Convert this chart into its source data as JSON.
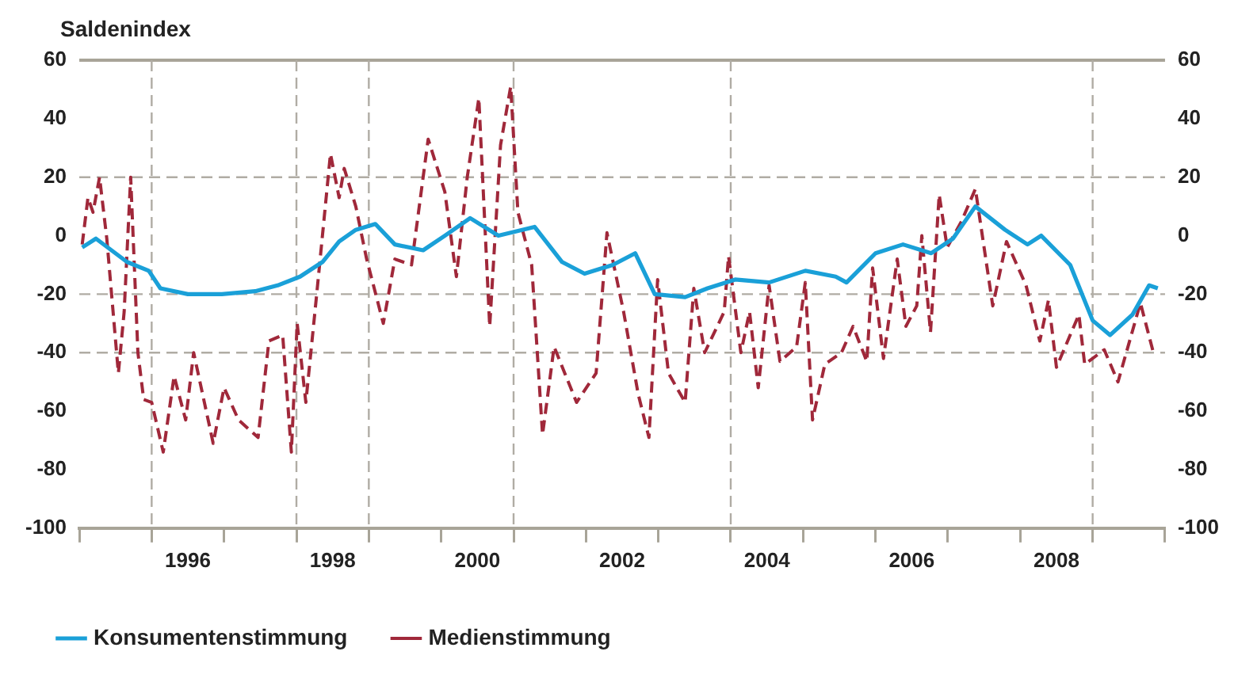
{
  "chart_data": {
    "type": "line",
    "ylabel": "Saldenindex",
    "xlim": [
      1995,
      2010
    ],
    "xticks": [
      {
        "value": 1995,
        "label": null
      },
      {
        "value": 1996,
        "label": null
      },
      {
        "value": 1996.5,
        "label": "1996"
      },
      {
        "value": 1997,
        "label": null
      },
      {
        "value": 1998,
        "label": null
      },
      {
        "value": 1998.5,
        "label": "1998"
      },
      {
        "value": 1999,
        "label": null
      },
      {
        "value": 2000,
        "label": null
      },
      {
        "value": 2000.5,
        "label": "2000"
      },
      {
        "value": 2001,
        "label": null
      },
      {
        "value": 2002,
        "label": null
      },
      {
        "value": 2002.5,
        "label": "2002"
      },
      {
        "value": 2003,
        "label": null
      },
      {
        "value": 2004,
        "label": null
      },
      {
        "value": 2004.5,
        "label": "2004"
      },
      {
        "value": 2005,
        "label": null
      },
      {
        "value": 2006,
        "label": null
      },
      {
        "value": 2006.5,
        "label": "2006"
      },
      {
        "value": 2007,
        "label": null
      },
      {
        "value": 2008,
        "label": null
      },
      {
        "value": 2008.5,
        "label": "2008"
      },
      {
        "value": 2009,
        "label": null
      },
      {
        "value": 2010,
        "label": null
      }
    ],
    "ylim": [
      -100,
      60
    ],
    "yticks": [
      -100,
      -80,
      -60,
      -40,
      -20,
      0,
      20,
      40,
      60
    ],
    "y2lim": [
      -100,
      60
    ],
    "y2ticks": [
      -100,
      -80,
      -60,
      -40,
      -20,
      0,
      20,
      40,
      60
    ],
    "legend": "bottom",
    "grid": false,
    "ref_lines": [
      {
        "axis": "x",
        "value": 1996,
        "color": "#b0aca4",
        "line_style": "dashed"
      },
      {
        "axis": "x",
        "value": 1998,
        "color": "#b0aca4",
        "line_style": "dashed"
      },
      {
        "axis": "x",
        "value": 1999,
        "color": "#b0aca4",
        "line_style": "dashed"
      },
      {
        "axis": "x",
        "value": 2001,
        "color": "#b0aca4",
        "line_style": "dashed"
      },
      {
        "axis": "x",
        "value": 2004,
        "color": "#b0aca4",
        "line_style": "dashed"
      },
      {
        "axis": "x",
        "value": 2009,
        "color": "#b0aca4",
        "line_style": "dashed"
      },
      {
        "axis": "y",
        "value": 20,
        "color": "#b0aca4",
        "line_style": "dashed"
      },
      {
        "axis": "y",
        "value": -20,
        "color": "#b0aca4",
        "line_style": "dashed"
      },
      {
        "axis": "y",
        "value": -40,
        "color": "#b0aca4",
        "line_style": "dashed"
      }
    ],
    "series": [
      {
        "name": "Konsumentenstimmung",
        "color": "#1aa0d8",
        "line_style": "solid",
        "x": [
          1995.04,
          1995.23,
          1995.66,
          1995.96,
          1996.12,
          1996.5,
          1996.97,
          1997.43,
          1997.74,
          1998.05,
          1998.36,
          1998.59,
          1998.82,
          1999.09,
          1999.36,
          1999.75,
          2000.05,
          2000.4,
          2000.79,
          2001.29,
          2001.67,
          2001.98,
          2002.37,
          2002.68,
          2002.95,
          2003.37,
          2003.68,
          2004.06,
          2004.53,
          2005.03,
          2005.45,
          2005.6,
          2006.0,
          2006.38,
          2006.77,
          2007.07,
          2007.38,
          2007.79,
          2008.1,
          2008.29,
          2008.69,
          2009.0,
          2009.24,
          2009.55,
          2009.78,
          2009.9
        ],
        "values": [
          -4,
          -1,
          -9,
          -12,
          -18,
          -20,
          -20,
          -19,
          -17,
          -14,
          -9,
          -2,
          2,
          4,
          -3,
          -5,
          0,
          6,
          0,
          3,
          -9,
          -13,
          -10,
          -6,
          -20,
          -21,
          -18,
          -15,
          -16,
          -12,
          -14,
          -16,
          -6,
          -3,
          -6,
          -1,
          10,
          2,
          -3,
          0,
          -10,
          -29,
          -34,
          -27,
          -17,
          -18
        ]
      },
      {
        "name": "Medienstimmung",
        "color": "#a0283a",
        "line_style": "dashed",
        "x": [
          1995.04,
          1995.12,
          1995.19,
          1995.28,
          1995.38,
          1995.54,
          1995.62,
          1995.71,
          1995.81,
          1995.89,
          1996.0,
          1996.16,
          1996.31,
          1996.47,
          1996.58,
          1996.85,
          1997.0,
          1997.2,
          1997.47,
          1997.62,
          1997.81,
          1997.93,
          1998.01,
          1998.13,
          1998.28,
          1998.47,
          1998.59,
          1998.66,
          1998.82,
          1998.97,
          1999.2,
          1999.36,
          1999.59,
          1999.82,
          2000.05,
          2000.21,
          2000.36,
          2000.52,
          2000.67,
          2000.82,
          2000.96,
          2001.06,
          2001.25,
          2001.4,
          2001.56,
          2001.87,
          2002.14,
          2002.29,
          2002.52,
          2002.72,
          2002.87,
          2002.99,
          2003.14,
          2003.37,
          2003.49,
          2003.64,
          2003.91,
          2003.97,
          2004.14,
          2004.26,
          2004.38,
          2004.53,
          2004.68,
          2004.91,
          2005.03,
          2005.13,
          2005.3,
          2005.53,
          2005.69,
          2005.88,
          2005.96,
          2006.11,
          2006.3,
          2006.42,
          2006.57,
          2006.64,
          2006.76,
          2006.88,
          2006.99,
          2007.19,
          2007.38,
          2007.62,
          2007.81,
          2008.08,
          2008.27,
          2008.39,
          2008.5,
          2008.81,
          2008.89,
          2009.16,
          2009.35,
          2009.66,
          2009.85
        ],
        "values": [
          -3,
          13,
          8,
          20,
          -1,
          -47,
          -26,
          20,
          -40,
          -56,
          -57,
          -74,
          -48,
          -63,
          -40,
          -71,
          -52,
          -63,
          -69,
          -36,
          -34,
          -74,
          -30,
          -57,
          -20,
          28,
          13,
          23,
          10,
          -8,
          -30,
          -8,
          -10,
          33,
          15,
          -14,
          20,
          47,
          -31,
          31,
          51,
          8,
          -10,
          -68,
          -38,
          -57,
          -47,
          1,
          -26,
          -54,
          -69,
          -15,
          -47,
          -57,
          -18,
          -40,
          -26,
          -7,
          -40,
          -26,
          -52,
          -17,
          -43,
          -38,
          -16,
          -63,
          -44,
          -40,
          -31,
          -43,
          -11,
          -42,
          -8,
          -31,
          -24,
          0,
          -33,
          14,
          -4,
          5,
          16,
          -24,
          -2,
          -17,
          -36,
          -22,
          -45,
          -27,
          -44,
          -39,
          -50,
          -23,
          -41
        ]
      }
    ]
  }
}
